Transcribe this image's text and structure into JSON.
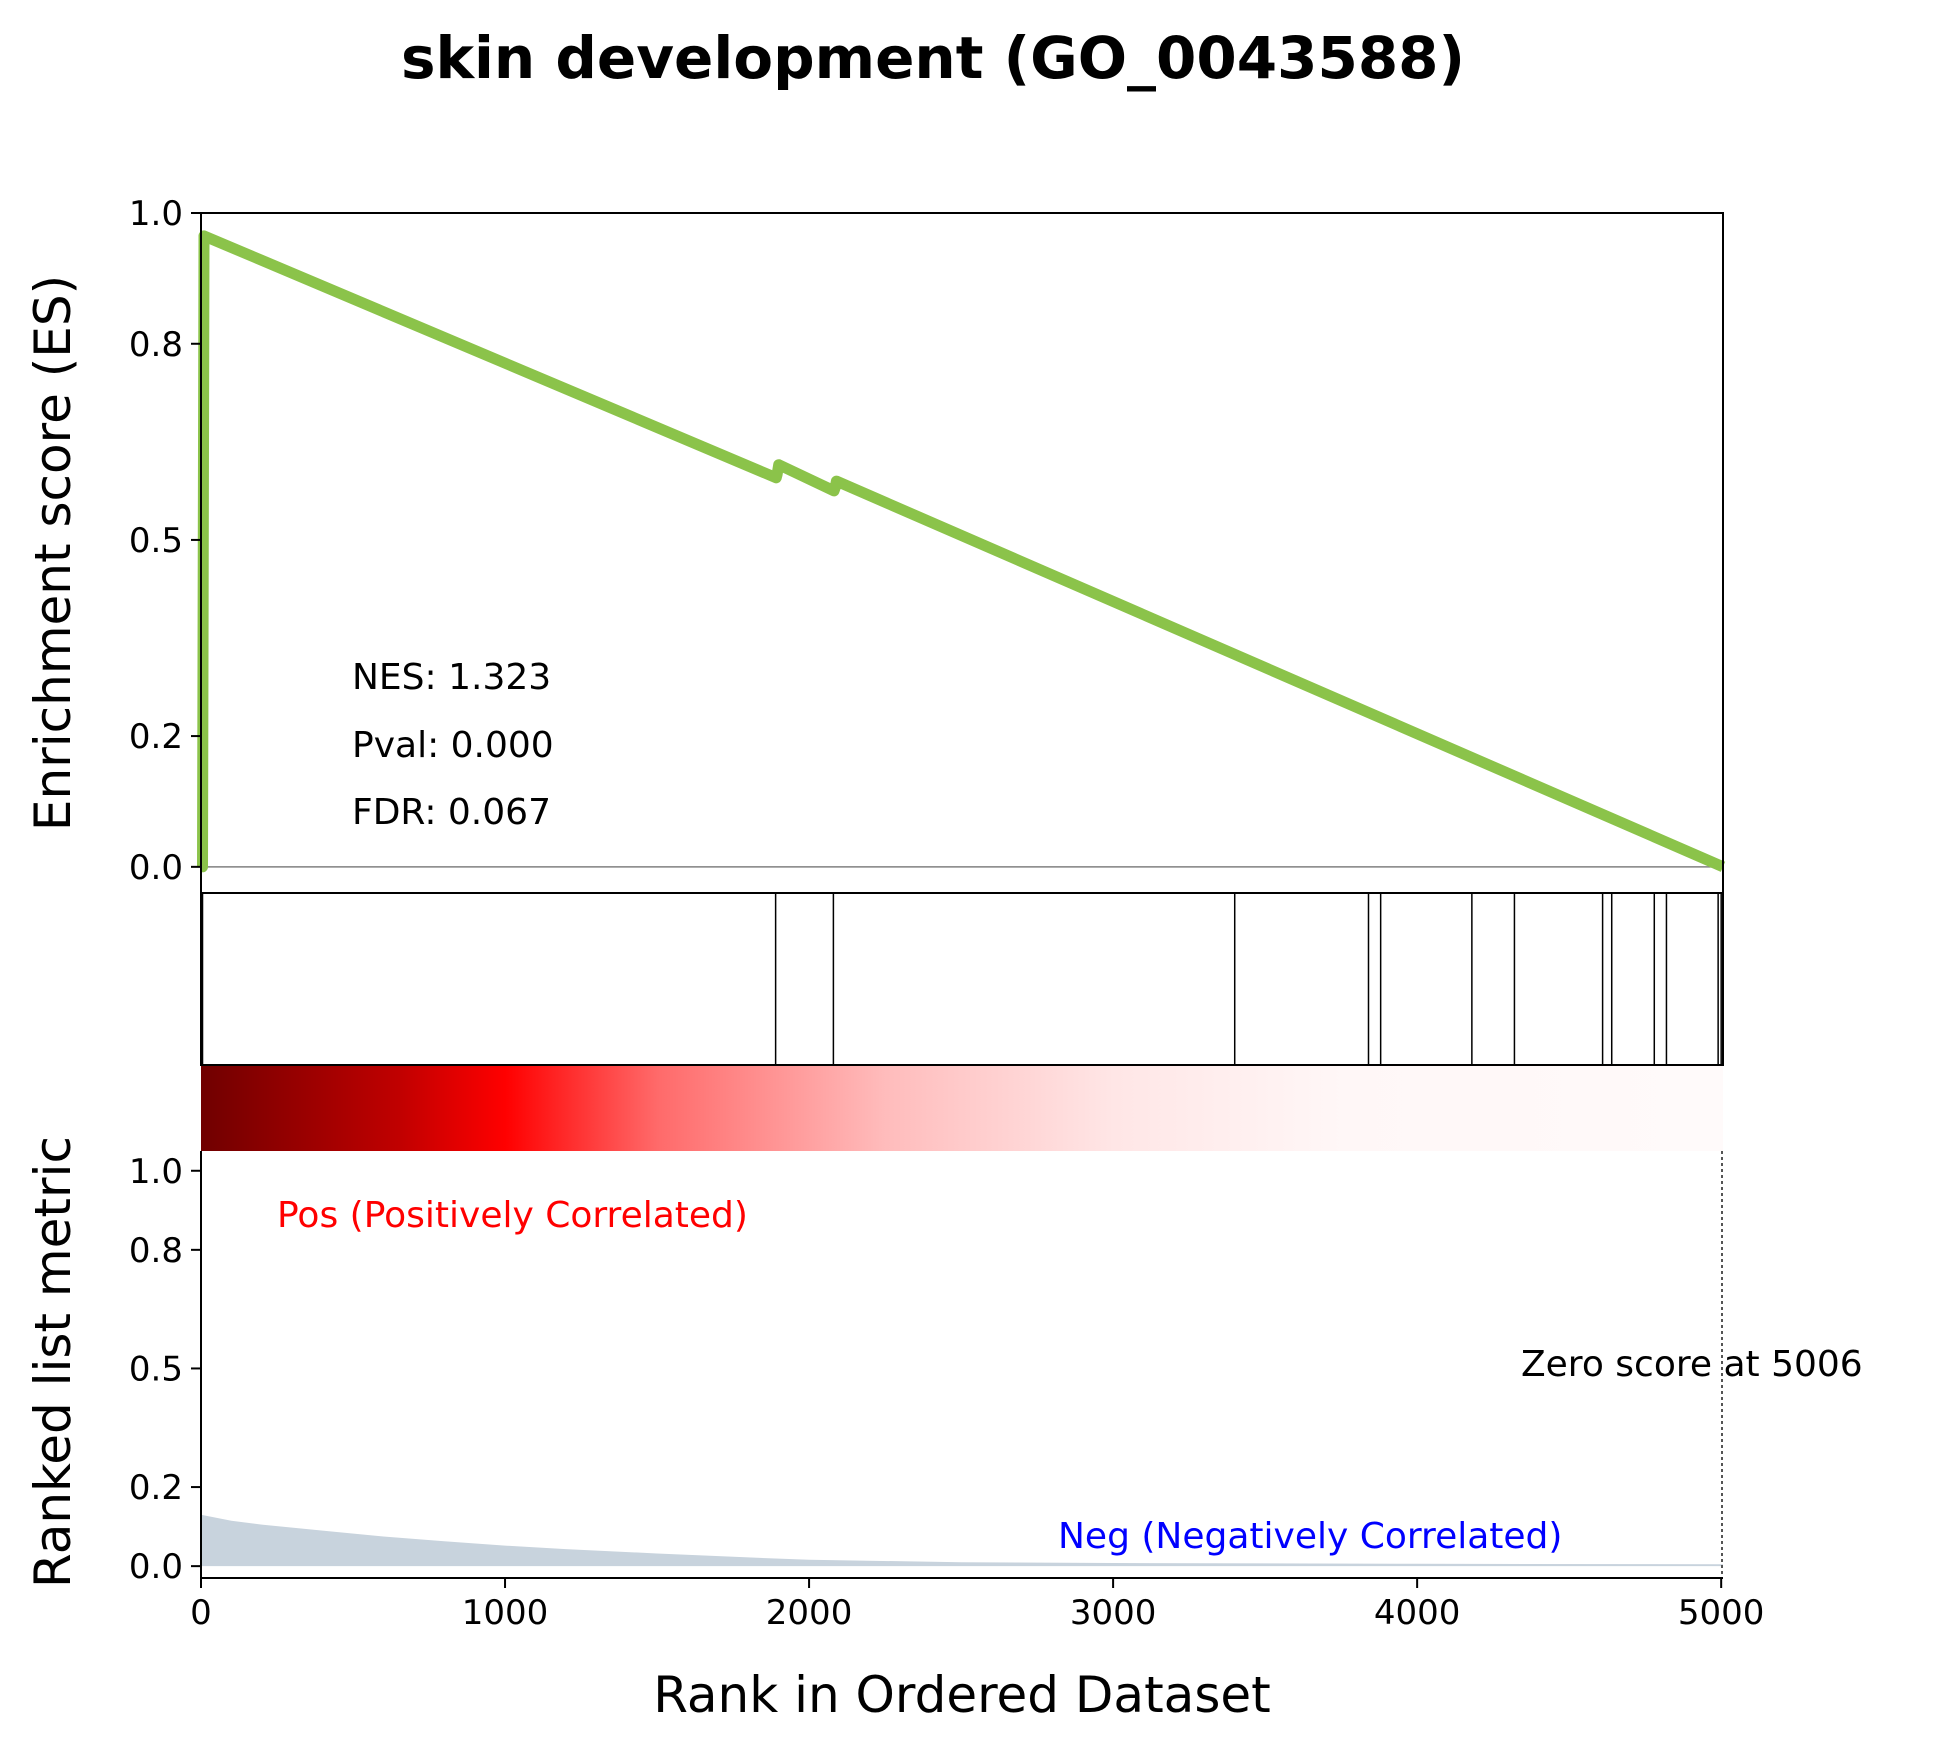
{
  "chart_data": {
    "type": "line",
    "title": "skin development (GO_0043588)",
    "xlabel": "Rank in Ordered Dataset",
    "xlim": [
      0,
      5006
    ],
    "x_ticks": [
      "0",
      "1000",
      "2000",
      "3000",
      "4000",
      "5000"
    ],
    "es_panel": {
      "ylabel": "Enrichment score (ES)",
      "ylim": [
        -0.04,
        1.0
      ],
      "y_ticks": [
        "0.0",
        "0.2",
        "0.5",
        "0.8",
        "1.0"
      ],
      "line_color": "#8bc34a",
      "es_curve": {
        "x": [
          0,
          5,
          10,
          1892,
          1895,
          1900,
          2082,
          2086,
          2090,
          5006
        ],
        "y": [
          0.0,
          0.0,
          0.965,
          0.595,
          0.6,
          0.615,
          0.575,
          0.58,
          0.59,
          0.0
        ]
      },
      "stats": {
        "nes": "NES: 1.323",
        "pval": "Pval: 0.000",
        "fdr": "FDR: 0.067"
      }
    },
    "hits_panel": {
      "hit_ranks": [
        5,
        1890,
        2080,
        3400,
        3840,
        3880,
        4180,
        4320,
        4610,
        4640,
        4780,
        4820,
        4990,
        5000
      ]
    },
    "rank_panel": {
      "ylabel": "Ranked list metric",
      "ylim": [
        -0.03,
        1.05
      ],
      "y_ticks": [
        "0.0",
        "0.2",
        "0.5",
        "0.8",
        "1.0"
      ],
      "fill_color": "#c8d3dd",
      "metric_curve": {
        "x": [
          0,
          100,
          200,
          400,
          600,
          800,
          1000,
          1200,
          1500,
          1800,
          2000,
          2500,
          3000,
          4000,
          5006
        ],
        "y": [
          0.13,
          0.115,
          0.105,
          0.09,
          0.075,
          0.063,
          0.052,
          0.043,
          0.032,
          0.022,
          0.016,
          0.01,
          0.008,
          0.006,
          0.005
        ]
      },
      "pos_label": "Pos (Positively Correlated)",
      "neg_label": "Neg (Negatively Correlated)",
      "zero_label": "Zero score at 5006",
      "zero_score_rank": 5006
    }
  }
}
